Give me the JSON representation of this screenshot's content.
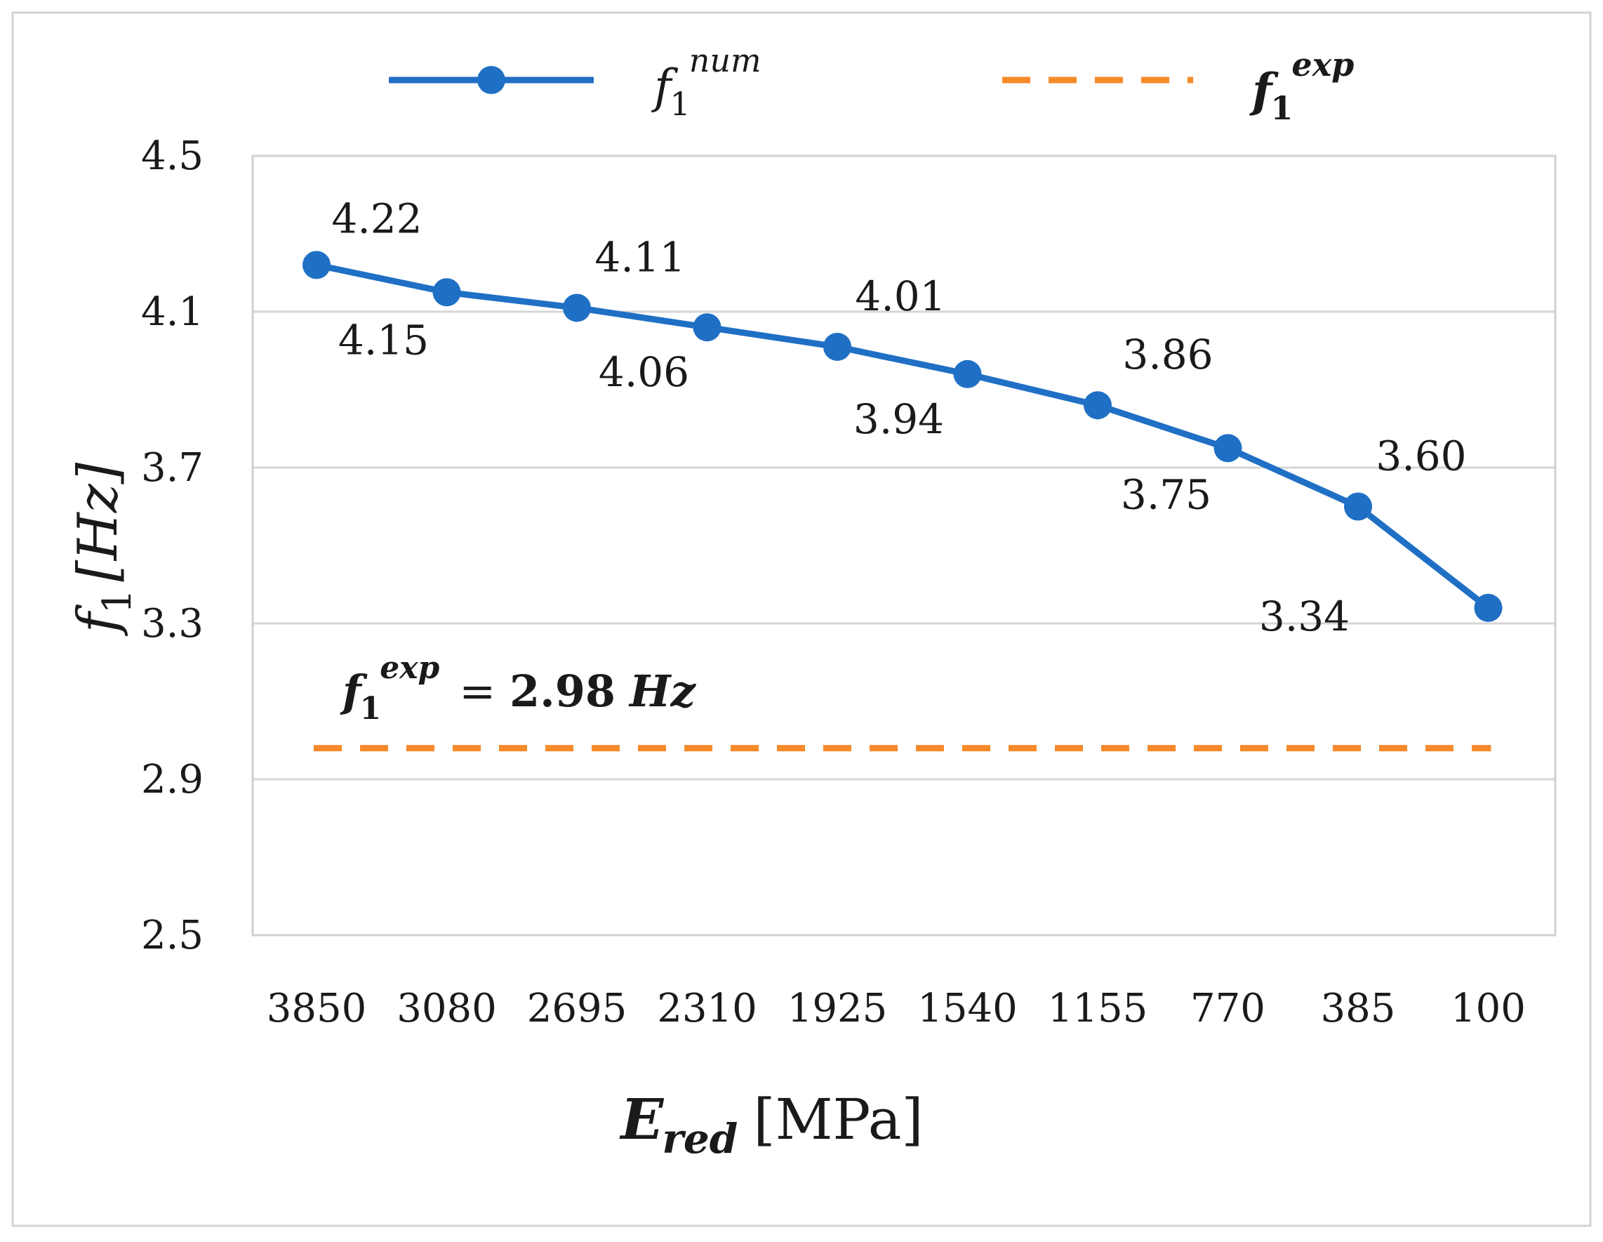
{
  "chart_data": {
    "type": "line",
    "categories": [
      "3850",
      "3080",
      "2695",
      "2310",
      "1925",
      "1540",
      "1155",
      "770",
      "385",
      "100"
    ],
    "series": [
      {
        "name": "f1^num",
        "legend_base": "f",
        "legend_sub": "1",
        "legend_sup": "num",
        "color": "#1f6fc5",
        "style": "solid-with-markers",
        "values": [
          4.22,
          4.15,
          4.11,
          4.06,
          4.01,
          3.94,
          3.86,
          3.75,
          3.6,
          3.34
        ],
        "data_labels": [
          "4.22",
          "4.15",
          "4.11",
          "4.06",
          "4.01",
          "3.94",
          "3.86",
          "3.75",
          "3.60",
          "3.34"
        ]
      },
      {
        "name": "f1^exp",
        "legend_base": "f",
        "legend_sub": "1",
        "legend_sup": "exp",
        "color": "#f58a2a",
        "style": "dashed",
        "values": [
          2.98,
          2.98,
          2.98,
          2.98,
          2.98,
          2.98,
          2.98,
          2.98,
          2.98,
          2.98
        ]
      }
    ],
    "annotation": {
      "base": "f",
      "sub": "1",
      "sup": "exp",
      "eq": "= ",
      "value": "2.98",
      "unit": "Hz"
    },
    "ylim": [
      2.5,
      4.5
    ],
    "yticks": [
      "4.5",
      "4.1",
      "3.7",
      "3.3",
      "2.9",
      "2.5"
    ],
    "ytick_values": [
      4.5,
      4.1,
      3.7,
      3.3,
      2.9,
      2.5
    ],
    "ylabel": {
      "base": "f",
      "sub": "1",
      "unit": "[Hz]"
    },
    "xlabel": {
      "base": "E",
      "sub": "red",
      "unit": "[MPa]"
    },
    "grid": true,
    "legend_position": "top"
  }
}
